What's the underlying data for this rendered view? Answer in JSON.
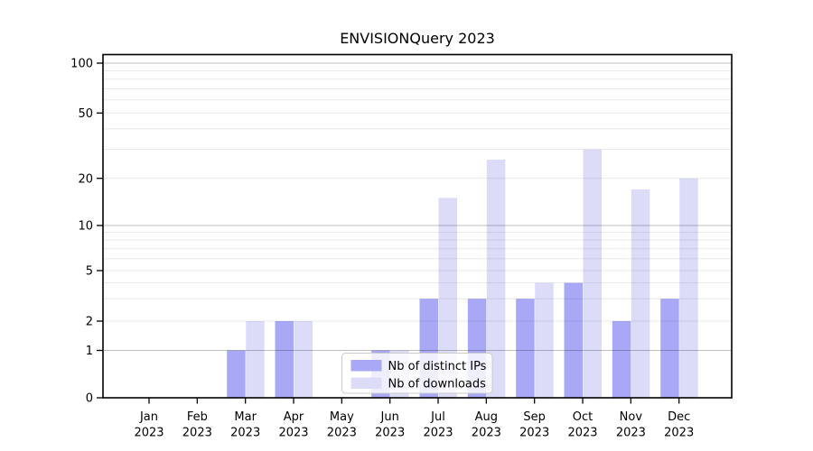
{
  "title": "ENVISIONQuery 2023",
  "chart_data": {
    "type": "bar",
    "title": "ENVISIONQuery 2023",
    "year": "2023",
    "months": [
      "Jan",
      "Feb",
      "Mar",
      "Apr",
      "May",
      "Jun",
      "Jul",
      "Aug",
      "Sep",
      "Oct",
      "Nov",
      "Dec"
    ],
    "categories": [
      "Jan 2023",
      "Feb 2023",
      "Mar 2023",
      "Apr 2023",
      "May 2023",
      "Jun 2023",
      "Jul 2023",
      "Aug 2023",
      "Sep 2023",
      "Oct 2023",
      "Nov 2023",
      "Dec 2023"
    ],
    "series": [
      {
        "name": "Nb of distinct IPs",
        "color": "#a8a8f6",
        "values": [
          0,
          0,
          1,
          2,
          0,
          1,
          3,
          3,
          3,
          4,
          2,
          3
        ]
      },
      {
        "name": "Nb of downloads",
        "color": "#dcdcf9",
        "values": [
          0,
          0,
          2,
          2,
          0,
          1,
          15,
          26,
          4,
          30,
          17,
          20
        ]
      }
    ],
    "y_axis": {
      "scale": "symlog",
      "tick_values": [
        0,
        1,
        2,
        5,
        10,
        20,
        50,
        100
      ],
      "tick_labels": [
        "0",
        "1",
        "2",
        "5",
        "10",
        "20",
        "50",
        "100"
      ],
      "minor_values": [
        2,
        3,
        4,
        5,
        6,
        7,
        8,
        9,
        20,
        30,
        40,
        50,
        60,
        70,
        80,
        90
      ],
      "major_values": [
        1,
        10,
        100
      ]
    },
    "legend": {
      "position": "lower center",
      "labels": [
        "Nb of distinct IPs",
        "Nb of downloads"
      ]
    },
    "grid": true
  },
  "colors": {
    "bar_dark": "#a8a8f6",
    "bar_light": "#dcdcf9",
    "grid_major": "rgba(0,0,0,0.25)",
    "grid_minor": "rgba(0,0,0,0.085)",
    "axis": "#000000",
    "text": "#000000",
    "legend_border": "#cccccc",
    "legend_bg": "rgba(255,255,255,0.8)"
  }
}
